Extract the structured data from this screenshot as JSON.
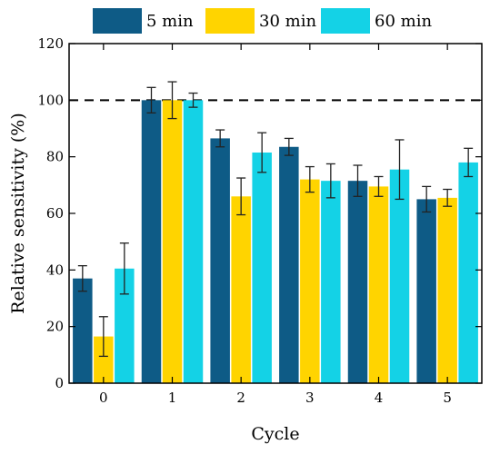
{
  "chart_data": {
    "type": "bar",
    "xlabel": "Cycle",
    "ylabel": "Relative sensitivity (%)",
    "ylim": [
      0,
      120
    ],
    "yticks": [
      0,
      20,
      40,
      60,
      80,
      100,
      120
    ],
    "categories": [
      "0",
      "1",
      "2",
      "3",
      "4",
      "5"
    ],
    "reference_line": {
      "y": 100,
      "style": "dashed"
    },
    "legend_position": "top",
    "series": [
      {
        "name": "5 min",
        "color": "#0e5b86",
        "values": [
          37,
          100,
          86.5,
          83.5,
          71.5,
          65
        ],
        "errors": [
          4.5,
          4.5,
          3,
          3,
          5.5,
          4.5
        ]
      },
      {
        "name": "30 min",
        "color": "#ffd400",
        "values": [
          16.5,
          100,
          66,
          72,
          69.5,
          65.5
        ],
        "errors": [
          7,
          6.5,
          6.5,
          4.5,
          3.5,
          3
        ]
      },
      {
        "name": "60 min",
        "color": "#14d2e6",
        "values": [
          40.5,
          100,
          81.5,
          71.5,
          75.5,
          78
        ],
        "errors": [
          9,
          2.5,
          7,
          6,
          10.5,
          5
        ]
      }
    ]
  }
}
